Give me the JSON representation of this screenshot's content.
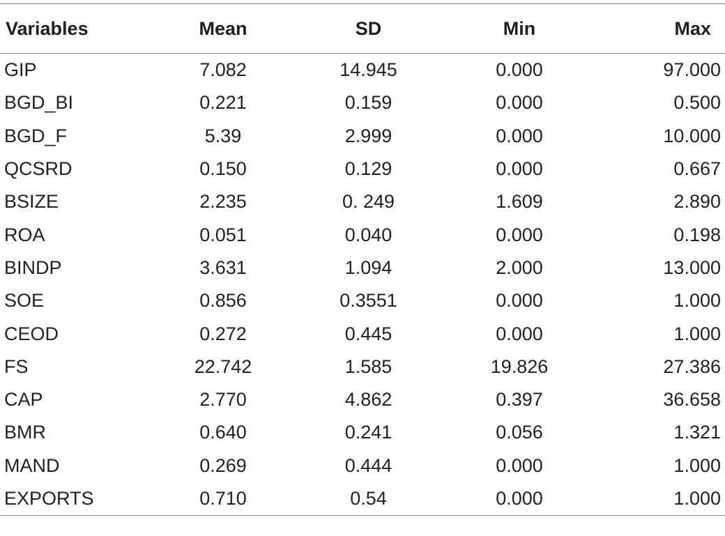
{
  "table": {
    "headers": [
      "Variables",
      "Mean",
      "SD",
      "Min",
      "Max"
    ],
    "rows": [
      [
        "GIP",
        "7.082",
        "14.945",
        "0.000",
        "97.000"
      ],
      [
        "BGD_BI",
        "0.221",
        "0.159",
        "0.000",
        "0.500"
      ],
      [
        "BGD_F",
        "5.39",
        "2.999",
        "0.000",
        "10.000"
      ],
      [
        "QCSRD",
        "0.150",
        "0.129",
        "0.000",
        "0.667"
      ],
      [
        "BSIZE",
        "2.235",
        "0. 249",
        "1.609",
        "2.890"
      ],
      [
        "ROA",
        "0.051",
        "0.040",
        "0.000",
        "0.198"
      ],
      [
        "BINDP",
        "3.631",
        "1.094",
        "2.000",
        "13.000"
      ],
      [
        "SOE",
        "0.856",
        "0.3551",
        "0.000",
        "1.000"
      ],
      [
        "CEOD",
        "0.272",
        "0.445",
        "0.000",
        "1.000"
      ],
      [
        "FS",
        "22.742",
        "1.585",
        "19.826",
        "27.386"
      ],
      [
        "CAP",
        "2.770",
        "4.862",
        "0.397",
        "36.658"
      ],
      [
        "BMR",
        "0.640",
        "0.241",
        "0.056",
        "1.321"
      ],
      [
        "MAND",
        "0.269",
        "0.444",
        "0.000",
        "1.000"
      ],
      [
        "EXPORTS",
        "0.710",
        "0.54",
        "0.000",
        "1.000"
      ]
    ]
  }
}
